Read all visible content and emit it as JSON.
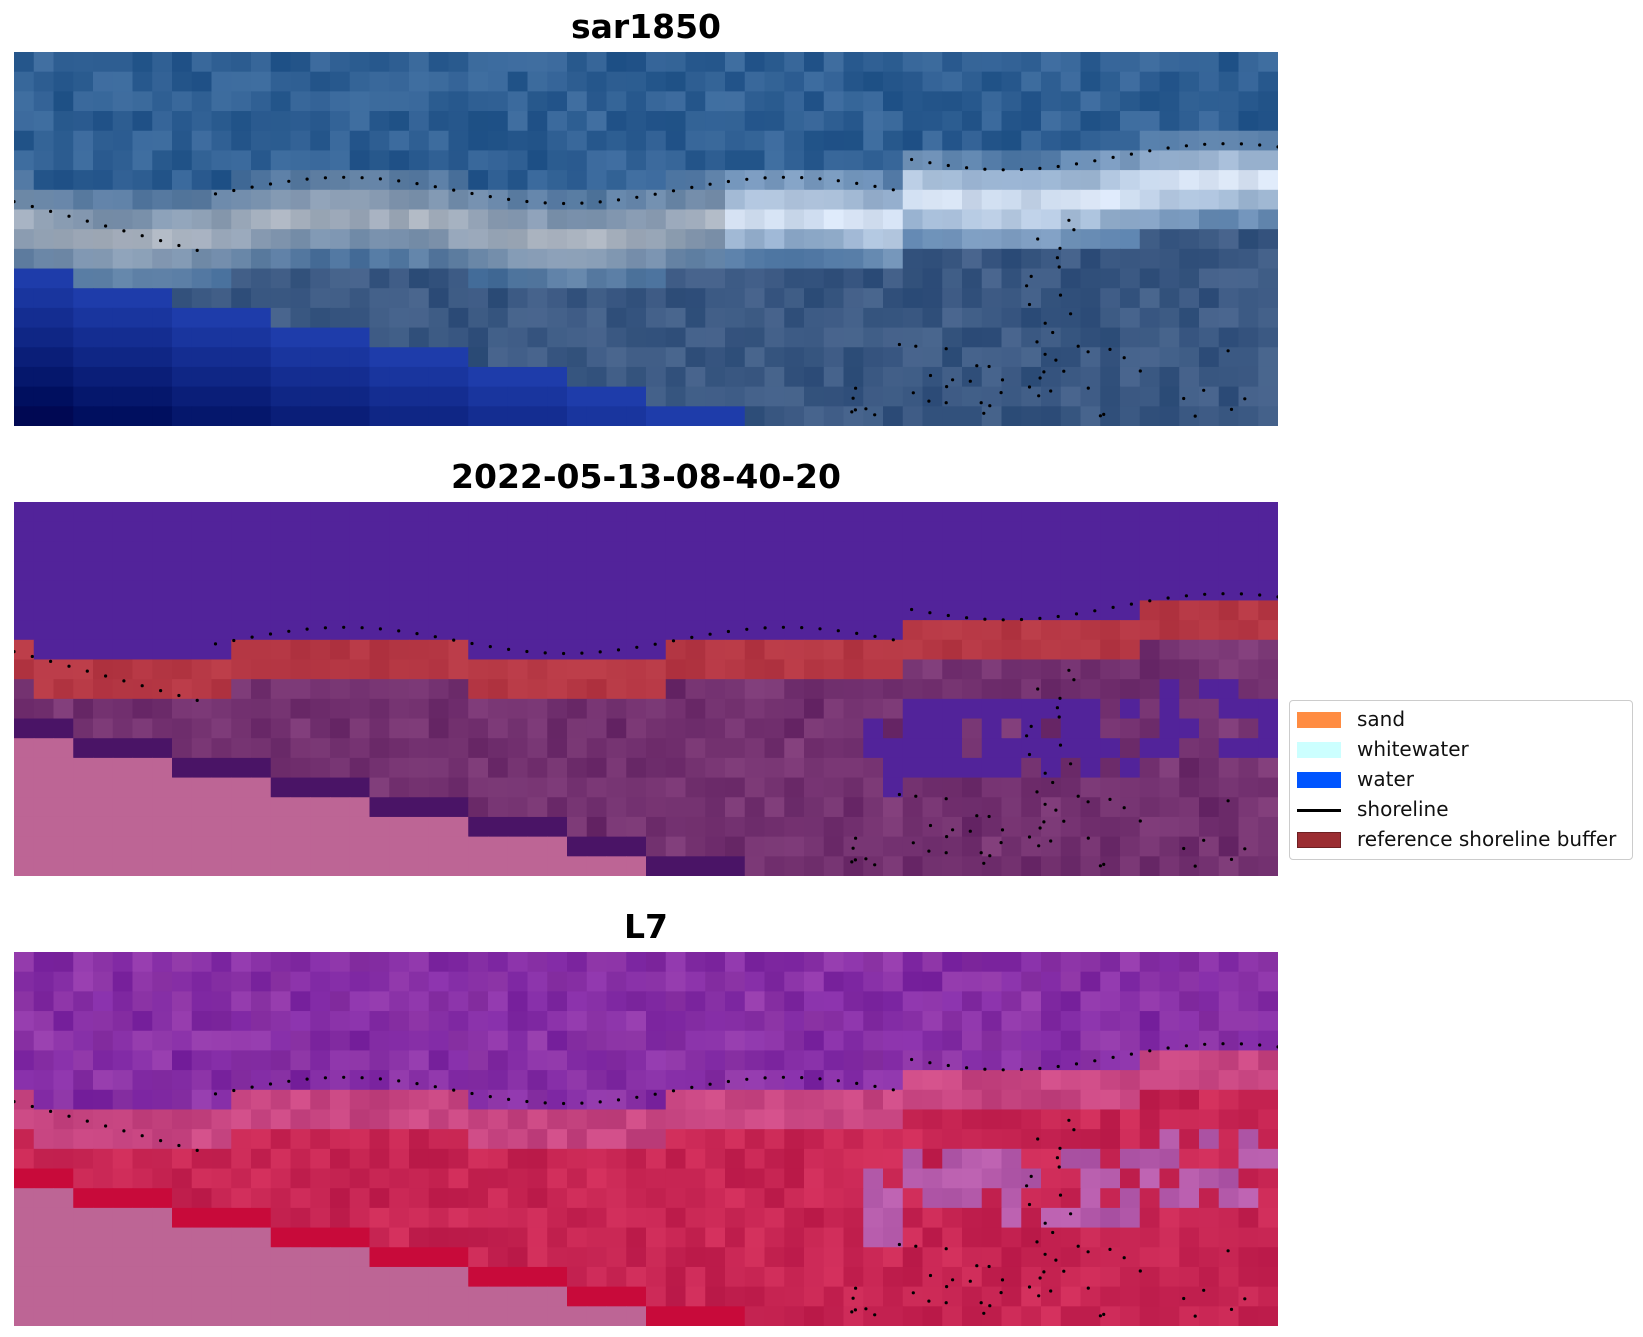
{
  "panels": [
    {
      "title": "sar1850",
      "variant": "rgb"
    },
    {
      "title": "2022-05-13-08-40-20",
      "variant": "classified"
    },
    {
      "title": "L7",
      "variant": "ndwi"
    }
  ],
  "legend": {
    "items": [
      {
        "label": "sand",
        "type": "patch",
        "color": "#ff8c42"
      },
      {
        "label": "whitewater",
        "type": "patch",
        "color": "#ccffff"
      },
      {
        "label": "water",
        "type": "patch",
        "color": "#0055ff"
      },
      {
        "label": "shoreline",
        "type": "line",
        "color": "#000000"
      },
      {
        "label": "reference shoreline buffer",
        "type": "patch",
        "color": "#9b2d32"
      }
    ]
  },
  "colors": {
    "rgb_ocean": "#2f5f93",
    "rgb_surf": "#c8d2e0",
    "rgb_nodata": "#ffffff",
    "class_water": "#52239a",
    "class_buffer": "#b53744",
    "class_land": "#6b2a69",
    "class_nodata": "#bd6595",
    "ndwi_water": "#7f28a4",
    "ndwi_land": "#c72553",
    "ndwi_nodata": "#bd6595"
  }
}
